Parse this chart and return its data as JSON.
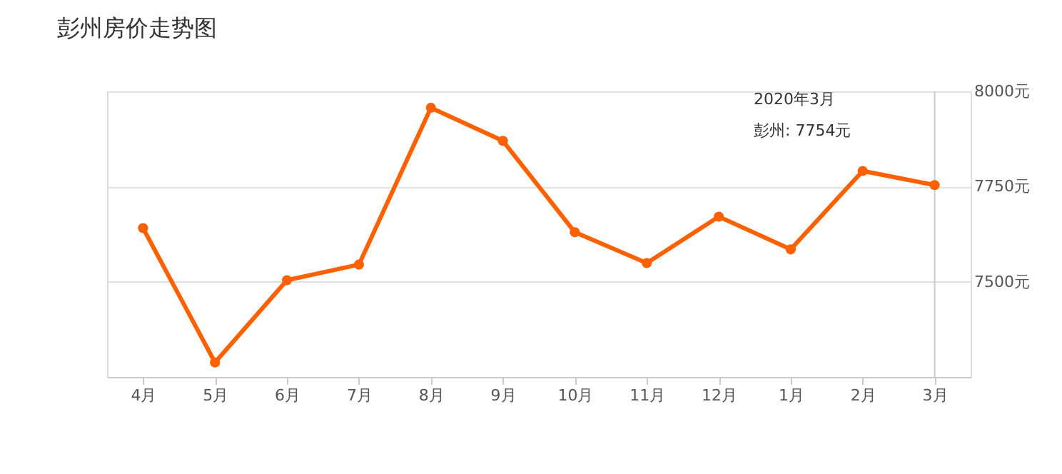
{
  "chart_data": {
    "type": "line",
    "title": "彭州房价走势图",
    "categories": [
      "4月",
      "5月",
      "6月",
      "7月",
      "8月",
      "9月",
      "10月",
      "11月",
      "12月",
      "1月",
      "2月",
      "3月"
    ],
    "series": [
      {
        "color": "#ff6000",
        "values": [
          7641,
          7288,
          7504,
          7545,
          7957,
          7870,
          7630,
          7549,
          7671,
          7585,
          7791,
          7754
        ]
      }
    ],
    "ylim": [
      7250,
      8000
    ],
    "yticks": [
      {
        "value": 7500,
        "label": "7500元"
      },
      {
        "value": 7750,
        "label": "7750元"
      },
      {
        "value": 8000,
        "label": "8000元"
      }
    ],
    "grid": "y",
    "marker": "circle",
    "legend": false,
    "ref_lines": [
      {
        "axis": "x",
        "value": "3月",
        "color": "#cccccc"
      }
    ],
    "annotations": [
      "2020年3月",
      "彭州:  7754元"
    ]
  }
}
